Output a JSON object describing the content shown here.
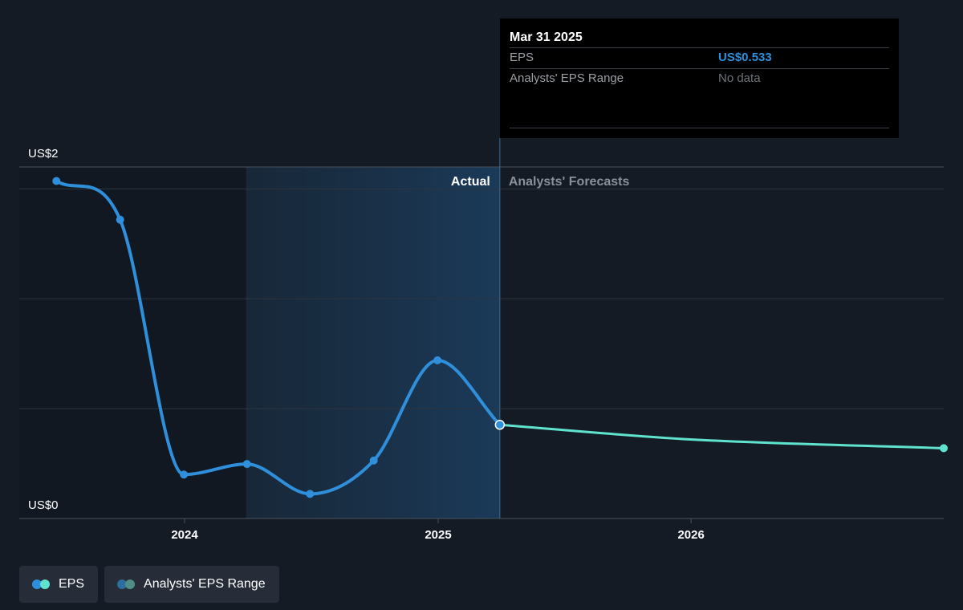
{
  "chart_data": {
    "type": "line",
    "title": "",
    "xlabel": "",
    "ylabel": "",
    "y_tick_labels": [
      "US$2",
      "US$0"
    ],
    "x_tick_labels": [
      "2024",
      "2025",
      "2026"
    ],
    "region_labels": {
      "actual": "Actual",
      "forecast": "Analysts' Forecasts"
    },
    "grid": true,
    "legend_position": "bottom-left",
    "series": [
      {
        "name": "EPS",
        "kind": "actual",
        "color": "#2f8fdb",
        "points": [
          {
            "x": "2023-06-30",
            "y": 1.92
          },
          {
            "x": "2023-09-30",
            "y": 1.7
          },
          {
            "x": "2023-12-31",
            "y": 0.25
          },
          {
            "x": "2024-03-31",
            "y": 0.31
          },
          {
            "x": "2024-06-30",
            "y": 0.14
          },
          {
            "x": "2024-09-30",
            "y": 0.33
          },
          {
            "x": "2024-12-31",
            "y": 0.9
          },
          {
            "x": "2025-03-31",
            "y": 0.533
          }
        ]
      },
      {
        "name": "EPS",
        "kind": "forecast",
        "color": "#5fe3cf",
        "points": [
          {
            "x": "2025-03-31",
            "y": 0.533
          },
          {
            "x": "2025-12-31",
            "y": 0.45
          },
          {
            "x": "2026-12-31",
            "y": 0.4
          }
        ]
      }
    ]
  },
  "tooltip": {
    "date": "Mar 31 2025",
    "rows": [
      {
        "label": "EPS",
        "value": "US$0.533"
      },
      {
        "label": "Analysts' EPS Range",
        "value": "No data"
      }
    ]
  },
  "legend": [
    {
      "label": "EPS",
      "colors": [
        "#2f8fdb",
        "#5fe3cf"
      ]
    },
    {
      "label": "Analysts' EPS Range",
      "colors": [
        "#2b6f9f",
        "#4f8f86"
      ]
    }
  ]
}
